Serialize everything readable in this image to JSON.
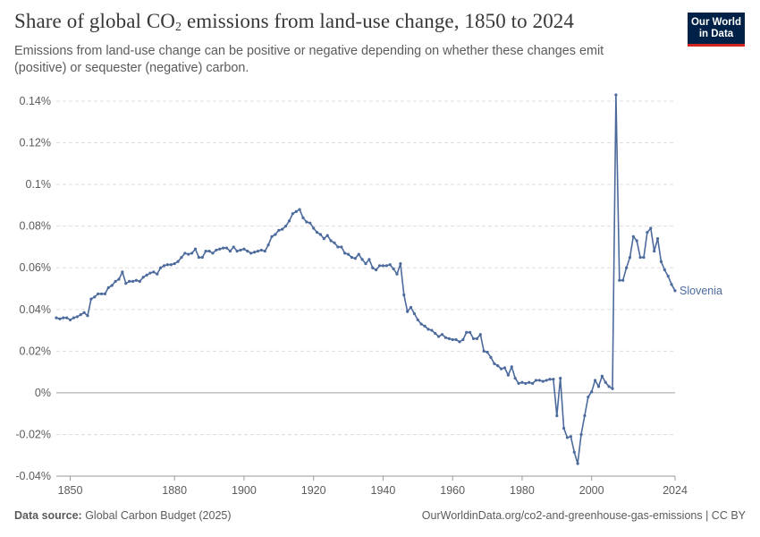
{
  "header": {
    "title_prefix": "Share of global CO",
    "title_sub": "2",
    "title_suffix": " emissions from land-use change, 1850 to 2024",
    "subtitle": "Emissions from land-use change can be positive or negative depending on whether these changes emit (positive) or sequester (negative) carbon."
  },
  "logo": {
    "line1": "Our World",
    "line2": "in Data"
  },
  "footer": {
    "source_label": "Data source:",
    "source_text": " Global Carbon Budget (2025)",
    "right_text": "OurWorldinData.org/co2-and-greenhouse-gas-emissions | CC BY"
  },
  "colors": {
    "series": "#4c6a9c",
    "grid": "#dddddd",
    "logo_bg": "#002147",
    "logo_accent": "#ce261e"
  },
  "chart_data": {
    "type": "line",
    "title": "Share of global CO₂ emissions from land-use change, 1850 to 2024",
    "xlabel": "",
    "ylabel": "",
    "xlim": [
      1850,
      2024
    ],
    "ylim": [
      -0.04,
      0.14
    ],
    "y_unit": "%",
    "y_ticks": [
      -0.04,
      -0.02,
      0,
      0.02,
      0.04,
      0.06,
      0.08,
      0.1,
      0.12,
      0.14
    ],
    "y_tick_labels": [
      "-0.04%",
      "-0.02%",
      "0%",
      "0.02%",
      "0.04%",
      "0.06%",
      "0.08%",
      "0.1%",
      "0.12%",
      "0.14%"
    ],
    "x_ticks": [
      1850,
      1880,
      1900,
      1920,
      1940,
      1960,
      1980,
      2000,
      2024
    ],
    "x_tick_labels": [
      "1850",
      "1880",
      "1900",
      "1920",
      "1940",
      "1960",
      "1980",
      "2000",
      "2024"
    ],
    "grid": true,
    "legend": "end-of-line label",
    "series": [
      {
        "name": "Slovenia",
        "x": [
          1846,
          1847,
          1848,
          1849,
          1850,
          1851,
          1852,
          1853,
          1854,
          1855,
          1856,
          1857,
          1858,
          1859,
          1860,
          1861,
          1862,
          1863,
          1864,
          1865,
          1866,
          1867,
          1868,
          1869,
          1870,
          1871,
          1872,
          1873,
          1874,
          1875,
          1876,
          1877,
          1878,
          1879,
          1880,
          1881,
          1882,
          1883,
          1884,
          1885,
          1886,
          1887,
          1888,
          1889,
          1890,
          1891,
          1892,
          1893,
          1894,
          1895,
          1896,
          1897,
          1898,
          1899,
          1900,
          1901,
          1902,
          1903,
          1904,
          1905,
          1906,
          1907,
          1908,
          1909,
          1910,
          1911,
          1912,
          1913,
          1914,
          1915,
          1916,
          1917,
          1918,
          1919,
          1920,
          1921,
          1922,
          1923,
          1924,
          1925,
          1926,
          1927,
          1928,
          1929,
          1930,
          1931,
          1932,
          1933,
          1934,
          1935,
          1936,
          1937,
          1938,
          1939,
          1940,
          1941,
          1942,
          1943,
          1944,
          1945,
          1946,
          1947,
          1948,
          1949,
          1950,
          1951,
          1952,
          1953,
          1954,
          1955,
          1956,
          1957,
          1958,
          1959,
          1960,
          1961,
          1962,
          1963,
          1964,
          1965,
          1966,
          1967,
          1968,
          1969,
          1970,
          1971,
          1972,
          1973,
          1974,
          1975,
          1976,
          1977,
          1978,
          1979,
          1980,
          1981,
          1982,
          1983,
          1984,
          1985,
          1986,
          1987,
          1988,
          1989,
          1990,
          1991,
          1992,
          1993,
          1994,
          1995,
          1996,
          1997,
          1998,
          1999,
          2000,
          2001,
          2002,
          2003,
          2004,
          2005,
          2006,
          2007,
          2008,
          2009,
          2010,
          2011,
          2012,
          2013,
          2014,
          2015,
          2016,
          2017,
          2018,
          2019,
          2020,
          2021,
          2022,
          2023,
          2024
        ],
        "y": [
          0.036,
          0.0355,
          0.036,
          0.036,
          0.035,
          0.036,
          0.0365,
          0.0375,
          0.0385,
          0.037,
          0.045,
          0.046,
          0.0475,
          0.0475,
          0.0475,
          0.0505,
          0.0515,
          0.0535,
          0.0545,
          0.058,
          0.0525,
          0.0535,
          0.0535,
          0.054,
          0.0535,
          0.0555,
          0.0565,
          0.0575,
          0.058,
          0.057,
          0.06,
          0.061,
          0.0615,
          0.0615,
          0.062,
          0.063,
          0.065,
          0.067,
          0.0665,
          0.067,
          0.069,
          0.065,
          0.065,
          0.068,
          0.068,
          0.067,
          0.0685,
          0.069,
          0.0695,
          0.0695,
          0.068,
          0.07,
          0.068,
          0.0685,
          0.069,
          0.068,
          0.067,
          0.0675,
          0.068,
          0.0685,
          0.068,
          0.071,
          0.075,
          0.076,
          0.078,
          0.0785,
          0.08,
          0.0825,
          0.086,
          0.087,
          0.088,
          0.084,
          0.082,
          0.0815,
          0.079,
          0.077,
          0.076,
          0.074,
          0.0755,
          0.073,
          0.072,
          0.07,
          0.07,
          0.067,
          0.0665,
          0.065,
          0.0645,
          0.0665,
          0.064,
          0.062,
          0.064,
          0.06,
          0.059,
          0.061,
          0.061,
          0.061,
          0.0615,
          0.0595,
          0.057,
          0.062,
          0.047,
          0.039,
          0.041,
          0.038,
          0.035,
          0.033,
          0.032,
          0.0305,
          0.03,
          0.0285,
          0.027,
          0.028,
          0.0265,
          0.026,
          0.0255,
          0.0255,
          0.0245,
          0.0255,
          0.029,
          0.029,
          0.026,
          0.026,
          0.028,
          0.02,
          0.0195,
          0.017,
          0.014,
          0.013,
          0.0115,
          0.012,
          0.0085,
          0.0125,
          0.007,
          0.0045,
          0.005,
          0.0045,
          0.005,
          0.0045,
          0.006,
          0.006,
          0.0055,
          0.006,
          0.0065,
          0.0065,
          -0.011,
          0.007,
          -0.017,
          -0.0215,
          -0.021,
          -0.0285,
          -0.034,
          -0.02,
          -0.011,
          -0.002,
          0.0005,
          0.006,
          0.003,
          0.008,
          0.005,
          0.003,
          0.002,
          0.143,
          0.054,
          0.054,
          0.06,
          0.065,
          0.075,
          0.073,
          0.065,
          0.065,
          0.077,
          0.079,
          0.068,
          0.074,
          0.063,
          0.059,
          0.056,
          0.052,
          0.049
        ]
      }
    ]
  }
}
